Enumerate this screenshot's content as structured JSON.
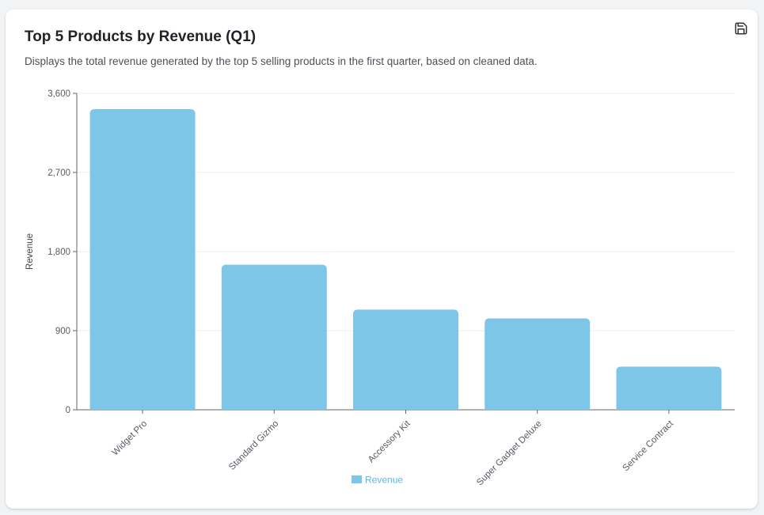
{
  "card": {
    "title": "Top 5 Products by Revenue (Q1)",
    "subtitle": "Displays the total revenue generated by the top 5 selling products in the first quarter, based on cleaned data.",
    "save_icon": "save-icon"
  },
  "colors": {
    "bar": "#7ec6e8",
    "legend_text": "#5bb8e3",
    "grid": "#ececec",
    "axis": "#666666"
  },
  "chart_data": {
    "type": "bar",
    "categories": [
      "Widget Pro",
      "Standard Gizmo",
      "Accessory Kit",
      "Super Gadget Deluxe",
      "Service Contract"
    ],
    "series": [
      {
        "name": "Revenue",
        "values": [
          3420,
          1650,
          1140,
          1040,
          490
        ]
      }
    ],
    "ylabel": "Revenue",
    "xlabel": "",
    "ylim": [
      0,
      3600
    ],
    "yticks": [
      "0",
      "900",
      "1,800",
      "2,700",
      "3,600"
    ],
    "ytick_values": [
      0,
      900,
      1800,
      2700,
      3600
    ],
    "grid": true,
    "legend_position": "bottom"
  }
}
